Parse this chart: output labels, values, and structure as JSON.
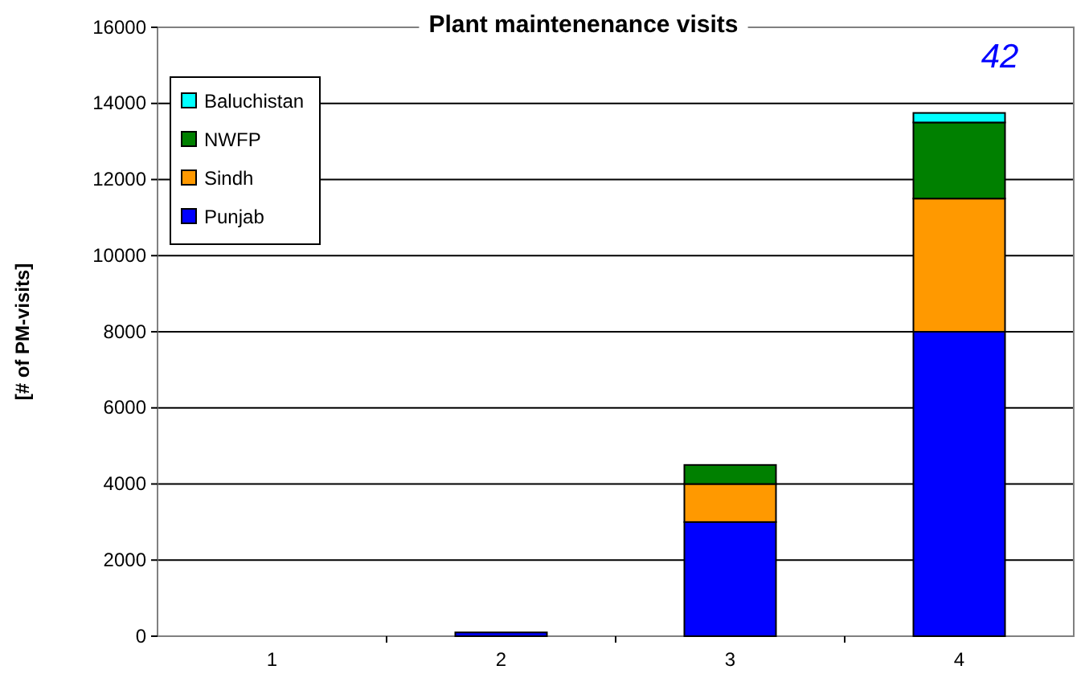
{
  "chart_data": {
    "type": "bar",
    "title": "Plant maintenenance visits",
    "ylabel": "[# of PM-visits]",
    "categories": [
      "1",
      "2",
      "3",
      "4"
    ],
    "stacked": true,
    "series": [
      {
        "name": "Punjab",
        "color": "#0000ff",
        "values": [
          0,
          100,
          3000,
          8000
        ]
      },
      {
        "name": "Sindh",
        "color": "#ff9900",
        "values": [
          0,
          0,
          1000,
          3500
        ]
      },
      {
        "name": "NWFP",
        "color": "#008000",
        "values": [
          0,
          0,
          500,
          2000
        ]
      },
      {
        "name": "Baluchistan",
        "color": "#00ffff",
        "values": [
          0,
          0,
          0,
          250
        ]
      }
    ],
    "ylim": [
      0,
      16000
    ],
    "yticks": [
      0,
      2000,
      4000,
      6000,
      8000,
      10000,
      12000,
      14000,
      16000
    ],
    "grid": "y",
    "legend": "top left",
    "annotations": [
      "42"
    ]
  }
}
